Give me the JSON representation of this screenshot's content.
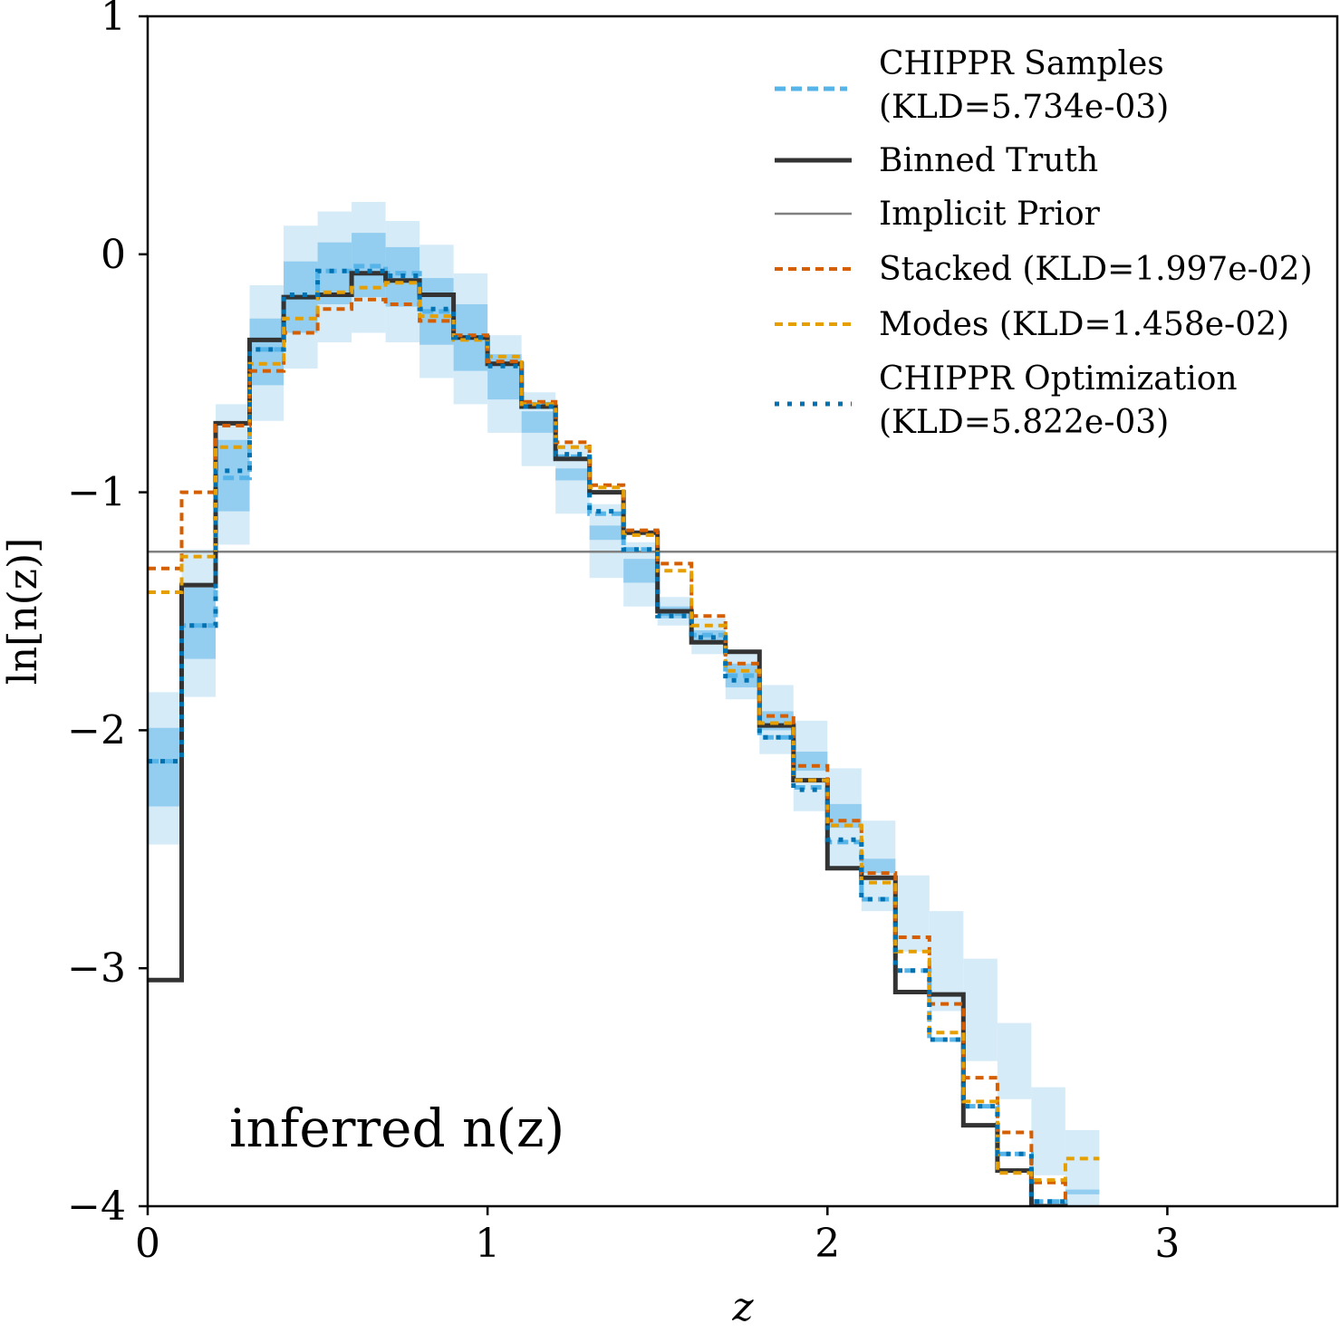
{
  "chart_data": {
    "type": "line",
    "xlabel": "z",
    "ylabel": "ln[n(z)]",
    "xlim": [
      0,
      3.5
    ],
    "ylim": [
      -4,
      1
    ],
    "xticks": [
      0,
      1,
      2,
      3
    ],
    "yticks": [
      -4,
      -3,
      -2,
      -1,
      0,
      1
    ],
    "xtick_labels": [
      "0",
      "1",
      "2",
      "3"
    ],
    "ytick_labels": [
      "−4",
      "−3",
      "−2",
      "−1",
      "0",
      "1"
    ],
    "annotation": "inferred n(z)",
    "legend_placement": "top-right",
    "grid": false,
    "bin_edges": [
      0.0,
      0.1,
      0.2,
      0.3,
      0.4,
      0.5,
      0.6,
      0.7,
      0.8,
      0.9,
      1.0,
      1.1,
      1.2,
      1.3,
      1.4,
      1.5,
      1.6,
      1.7,
      1.8,
      1.9,
      2.0,
      2.1,
      2.2,
      2.3,
      2.4,
      2.5,
      2.6,
      2.7,
      2.8
    ],
    "colors": {
      "samples": "#56b4e9",
      "band_inner": "#93cdf0",
      "band_outer": "#d5ebf8",
      "truth": "#333333",
      "prior": "#808080",
      "stacked": "#d55e00",
      "modes": "#e69f00",
      "optimization": "#0072b2"
    },
    "series": [
      {
        "name": "CHIPPR Samples",
        "legend_kld": "(KLD=5.734e-03)",
        "style": "dashed",
        "values": [
          -2.13,
          -1.56,
          -0.94,
          -0.4,
          -0.18,
          -0.07,
          -0.05,
          -0.08,
          -0.24,
          -0.35,
          -0.46,
          -0.63,
          -0.85,
          -1.09,
          -1.24,
          -1.51,
          -1.6,
          -1.77,
          -2.03,
          -2.24,
          -2.47,
          -2.71,
          -3.01,
          -3.3,
          -3.58,
          -3.78,
          -3.98,
          -4.2
        ],
        "upper_outer": [
          -1.84,
          -1.24,
          -0.63,
          -0.13,
          0.12,
          0.18,
          0.22,
          0.14,
          0.04,
          -0.08,
          -0.34,
          -0.58,
          -0.8,
          -1.05,
          -1.21,
          -1.44,
          -1.53,
          -1.66,
          -1.81,
          -1.96,
          -2.16,
          -2.38,
          -2.61,
          -2.76,
          -2.96,
          -3.23,
          -3.5,
          -3.68
        ],
        "lower_outer": [
          -2.48,
          -1.86,
          -1.22,
          -0.7,
          -0.48,
          -0.37,
          -0.33,
          -0.37,
          -0.52,
          -0.63,
          -0.75,
          -0.89,
          -1.09,
          -1.36,
          -1.48,
          -1.56,
          -1.68,
          -1.87,
          -2.1,
          -2.34,
          -2.58,
          -2.76,
          -2.93,
          -3.18,
          -3.39,
          -3.55,
          -3.87,
          -4.0
        ],
        "upper_inner": [
          -1.99,
          -1.4,
          -0.78,
          -0.27,
          -0.03,
          0.05,
          0.09,
          0.03,
          -0.1,
          -0.21,
          -0.42,
          -0.66,
          -0.9,
          -1.14,
          -1.28,
          -1.48,
          -1.58,
          -1.72,
          -1.92,
          -2.09,
          -2.31,
          -2.54,
          -2.82,
          -3.0,
          -3.23,
          -3.45,
          -3.75,
          -3.93
        ],
        "lower_inner": [
          -2.32,
          -1.7,
          -1.08,
          -0.55,
          -0.33,
          -0.21,
          -0.18,
          -0.22,
          -0.38,
          -0.49,
          -0.61,
          -0.75,
          -0.95,
          -1.2,
          -1.38,
          -1.53,
          -1.63,
          -1.82,
          -2.0,
          -2.17,
          -2.41,
          -2.6,
          -2.8,
          -2.97,
          -3.14,
          -3.36,
          -3.62,
          -3.95
        ]
      },
      {
        "name": "Binned Truth",
        "style": "solid-thick",
        "values": [
          -3.05,
          -1.39,
          -0.71,
          -0.36,
          -0.18,
          -0.17,
          -0.08,
          -0.11,
          -0.17,
          -0.35,
          -0.46,
          -0.64,
          -0.86,
          -1.0,
          -1.17,
          -1.5,
          -1.63,
          -1.67,
          -1.98,
          -2.21,
          -2.58,
          -2.62,
          -3.1,
          -3.11,
          -3.66,
          -3.85,
          -4.0,
          -4.2
        ]
      },
      {
        "name": "Implicit Prior",
        "style": "solid-thin",
        "value": -1.25
      },
      {
        "name": "Stacked",
        "legend_kld": "(KLD=1.997e-02)",
        "style": "dashed",
        "values": [
          -1.32,
          -1.0,
          -0.72,
          -0.49,
          -0.33,
          -0.23,
          -0.19,
          -0.21,
          -0.28,
          -0.34,
          -0.45,
          -0.62,
          -0.79,
          -0.97,
          -1.16,
          -1.3,
          -1.52,
          -1.72,
          -1.94,
          -2.15,
          -2.38,
          -2.6,
          -2.87,
          -3.15,
          -3.46,
          -3.69,
          -3.9,
          -4.2
        ]
      },
      {
        "name": "Modes",
        "legend_kld": "(KLD=1.458e-02)",
        "style": "dashed",
        "values": [
          -1.42,
          -1.27,
          -0.81,
          -0.46,
          -0.27,
          -0.16,
          -0.14,
          -0.12,
          -0.26,
          -0.36,
          -0.43,
          -0.63,
          -0.81,
          -0.98,
          -1.18,
          -1.33,
          -1.56,
          -1.75,
          -1.97,
          -2.21,
          -2.4,
          -2.64,
          -2.93,
          -3.27,
          -3.56,
          -3.86,
          -3.89,
          -3.8
        ]
      },
      {
        "name": "CHIPPR Optimization",
        "legend_kld": "(KLD=5.822e-03)",
        "style": "dotted",
        "values": [
          -2.13,
          -1.56,
          -0.91,
          -0.4,
          -0.17,
          -0.07,
          -0.07,
          -0.09,
          -0.23,
          -0.35,
          -0.47,
          -0.64,
          -0.84,
          -1.08,
          -1.24,
          -1.52,
          -1.61,
          -1.79,
          -2.03,
          -2.25,
          -2.46,
          -2.71,
          -3.01,
          -3.3,
          -3.58,
          -3.78,
          -3.98,
          -4.2
        ]
      }
    ]
  }
}
